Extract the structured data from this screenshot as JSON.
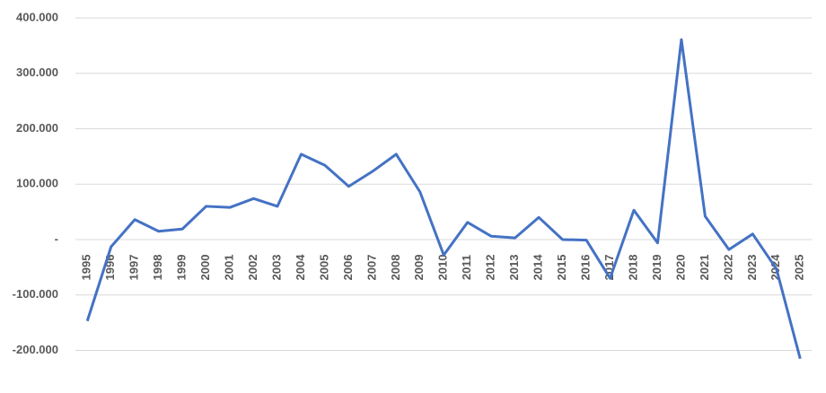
{
  "chart_data": {
    "type": "line",
    "categories": [
      "1995",
      "1996",
      "1997",
      "1998",
      "1999",
      "2000",
      "2001",
      "2002",
      "2003",
      "2004",
      "2005",
      "2006",
      "2007",
      "2008",
      "2009",
      "2010",
      "2011",
      "2012",
      "2013",
      "2014",
      "2015",
      "2016",
      "2017",
      "2018",
      "2019",
      "2020",
      "2021",
      "2022",
      "2023",
      "2024",
      "2025"
    ],
    "series": [
      {
        "color": "#4472c4",
        "values": [
          -147000,
          -13000,
          36000,
          15000,
          19000,
          60000,
          58000,
          74000,
          60000,
          154000,
          134000,
          96000,
          123000,
          154000,
          86000,
          -28000,
          31000,
          6000,
          3000,
          40000,
          0,
          -1000,
          -70000,
          53000,
          -6000,
          361000,
          42000,
          -18000,
          10000,
          -53000,
          -215000
        ]
      }
    ],
    "ylim": [
      -270000,
      400000
    ],
    "yticks": [
      {
        "value": -200000,
        "label": "-200.000"
      },
      {
        "value": -100000,
        "label": "-100.000"
      },
      {
        "value": 0,
        "label": "-"
      },
      {
        "value": 100000,
        "label": "100.000"
      },
      {
        "value": 200000,
        "label": "200.000"
      },
      {
        "value": 300000,
        "label": "300.000"
      },
      {
        "value": 400000,
        "label": "400.000"
      }
    ],
    "grid": true
  }
}
